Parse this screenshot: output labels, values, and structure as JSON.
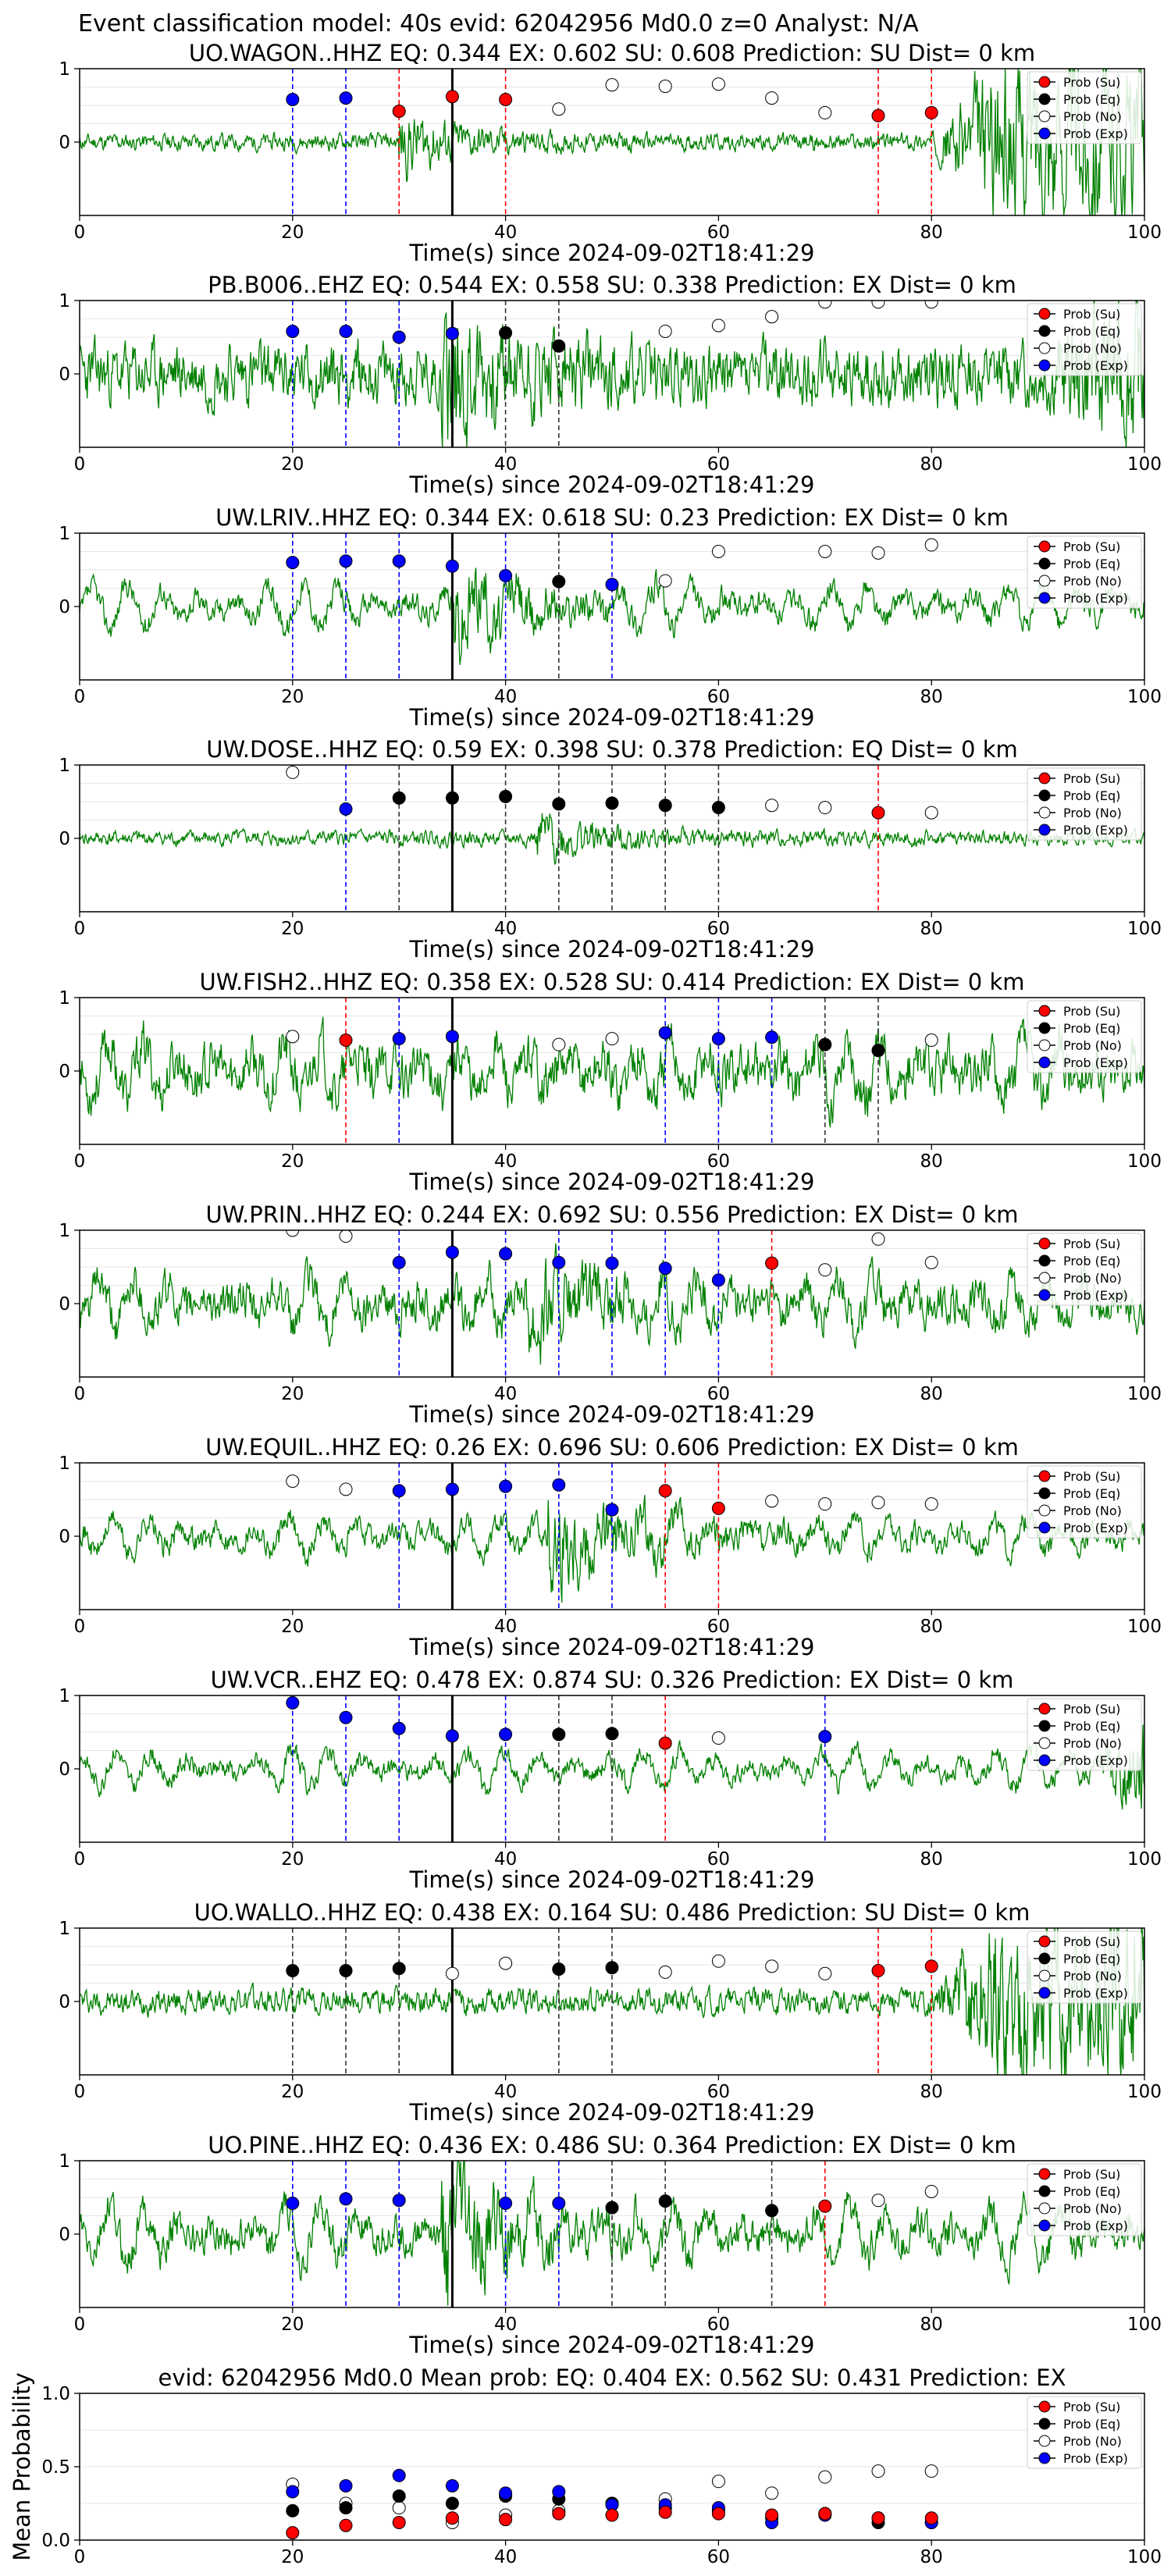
{
  "figure_title": "Event classification model: 40s evid: 62042956 Md0.0 z=0 Analyst: N/A",
  "xlabel": "Time(s) since 2024-09-02T18:41:29",
  "xticks": [
    "0",
    "20",
    "40",
    "60",
    "80",
    "100"
  ],
  "yticks": [
    "1",
    "0"
  ],
  "legend": [
    "Prob (Su)",
    "Prob (Eq)",
    "Prob (No)",
    "Prob (Exp)"
  ],
  "colors": {
    "su": "#ff0000",
    "eq": "#000000",
    "no": "#ffffff",
    "exp": "#0000ff",
    "trace": "#008000",
    "origin": "#000000"
  },
  "chart_data": [
    {
      "type": "line",
      "title": "UO.WAGON..HHZ   EQ: 0.344  EX: 0.602  SU: 0.608   Prediction: SU    Dist= 0 km",
      "xlim": [
        0,
        100
      ],
      "ylim": [
        -1,
        1
      ],
      "origin_time": 35,
      "points": [
        [
          20,
          0.58,
          "exp"
        ],
        [
          25,
          0.6,
          "exp"
        ],
        [
          30,
          0.42,
          "su"
        ],
        [
          35,
          0.62,
          "su"
        ],
        [
          40,
          0.58,
          "su"
        ],
        [
          45,
          0.45,
          "no"
        ],
        [
          50,
          0.78,
          "no"
        ],
        [
          55,
          0.76,
          "no"
        ],
        [
          60,
          0.79,
          "no"
        ],
        [
          65,
          0.6,
          "no"
        ],
        [
          70,
          0.4,
          "no"
        ],
        [
          75,
          0.36,
          "su"
        ],
        [
          80,
          0.4,
          "su"
        ]
      ],
      "trace": {
        "seed": 11,
        "noise": 0.08,
        "event_start": 30,
        "event_amp": 0.28,
        "late_start": 80,
        "late_amp": 0.7
      }
    },
    {
      "type": "line",
      "title": "PB.B006..EHZ   EQ: 0.544  EX: 0.558  SU: 0.338   Prediction: EX    Dist= 0 km",
      "xlim": [
        0,
        100
      ],
      "ylim": [
        -1,
        1
      ],
      "origin_time": 35,
      "points": [
        [
          20,
          0.58,
          "exp"
        ],
        [
          25,
          0.58,
          "exp"
        ],
        [
          30,
          0.5,
          "exp"
        ],
        [
          35,
          0.55,
          "exp"
        ],
        [
          40,
          0.56,
          "eq"
        ],
        [
          45,
          0.38,
          "eq"
        ],
        [
          55,
          0.58,
          "no"
        ],
        [
          60,
          0.66,
          "no"
        ],
        [
          65,
          0.78,
          "no"
        ],
        [
          70,
          0.98,
          "no"
        ],
        [
          75,
          0.98,
          "no"
        ],
        [
          80,
          0.98,
          "no"
        ]
      ],
      "trace": {
        "seed": 23,
        "noise": 0.3,
        "event_start": 34,
        "event_amp": 0.55,
        "late_start": 90,
        "late_amp": 0.4
      }
    },
    {
      "type": "line",
      "title": "UW.LRIV..HHZ   EQ: 0.344  EX: 0.618  SU: 0.23   Prediction: EX    Dist= 0 km",
      "xlim": [
        0,
        100
      ],
      "ylim": [
        -1,
        1
      ],
      "origin_time": 35,
      "points": [
        [
          20,
          0.6,
          "exp"
        ],
        [
          25,
          0.62,
          "exp"
        ],
        [
          30,
          0.62,
          "exp"
        ],
        [
          35,
          0.55,
          "exp"
        ],
        [
          40,
          0.42,
          "exp"
        ],
        [
          45,
          0.34,
          "eq"
        ],
        [
          50,
          0.3,
          "exp"
        ],
        [
          55,
          0.35,
          "no"
        ],
        [
          60,
          0.75,
          "no"
        ],
        [
          70,
          0.75,
          "no"
        ],
        [
          75,
          0.73,
          "no"
        ],
        [
          80,
          0.84,
          "no"
        ]
      ],
      "trace": {
        "seed": 37,
        "noise": 0.12,
        "wave_amp": 0.3,
        "event_start": 35,
        "event_amp": 0.4,
        "late_start": 100,
        "late_amp": 0
      }
    },
    {
      "type": "line",
      "title": "UW.DOSE..HHZ   EQ: 0.59  EX: 0.398  SU: 0.378   Prediction: EQ    Dist= 0 km",
      "xlim": [
        0,
        100
      ],
      "ylim": [
        -1,
        1
      ],
      "origin_time": 35,
      "points": [
        [
          20,
          0.9,
          "no"
        ],
        [
          25,
          0.4,
          "exp"
        ],
        [
          30,
          0.55,
          "eq"
        ],
        [
          35,
          0.55,
          "eq"
        ],
        [
          40,
          0.57,
          "eq"
        ],
        [
          45,
          0.47,
          "eq"
        ],
        [
          50,
          0.48,
          "eq"
        ],
        [
          55,
          0.45,
          "eq"
        ],
        [
          60,
          0.42,
          "eq"
        ],
        [
          65,
          0.45,
          "no"
        ],
        [
          70,
          0.42,
          "no"
        ],
        [
          75,
          0.35,
          "su"
        ],
        [
          80,
          0.35,
          "no"
        ]
      ],
      "trace": {
        "seed": 41,
        "noise": 0.07,
        "event_start": 43,
        "event_amp": 0.22,
        "late_start": 100,
        "late_amp": 0
      }
    },
    {
      "type": "line",
      "title": "UW.FISH2..HHZ   EQ: 0.358  EX: 0.528  SU: 0.414   Prediction: EX    Dist= 0 km",
      "xlim": [
        0,
        100
      ],
      "ylim": [
        -1,
        1
      ],
      "origin_time": 35,
      "points": [
        [
          20,
          0.47,
          "no"
        ],
        [
          25,
          0.42,
          "su"
        ],
        [
          30,
          0.44,
          "exp"
        ],
        [
          35,
          0.47,
          "exp"
        ],
        [
          45,
          0.36,
          "no"
        ],
        [
          50,
          0.44,
          "no"
        ],
        [
          55,
          0.52,
          "exp"
        ],
        [
          60,
          0.44,
          "exp"
        ],
        [
          65,
          0.46,
          "exp"
        ],
        [
          70,
          0.36,
          "eq"
        ],
        [
          75,
          0.28,
          "eq"
        ],
        [
          80,
          0.42,
          "no"
        ]
      ],
      "trace": {
        "seed": 53,
        "noise": 0.25,
        "wave_amp": 0.35,
        "event_start": 100,
        "event_amp": 0,
        "late_start": 100,
        "late_amp": 0
      }
    },
    {
      "type": "line",
      "title": "UW.PRIN..HHZ   EQ: 0.244  EX: 0.692  SU: 0.556   Prediction: EX    Dist= 0 km",
      "xlim": [
        0,
        100
      ],
      "ylim": [
        -1,
        1
      ],
      "origin_time": 35,
      "points": [
        [
          20,
          1.0,
          "no"
        ],
        [
          25,
          0.92,
          "no"
        ],
        [
          30,
          0.56,
          "exp"
        ],
        [
          35,
          0.7,
          "exp"
        ],
        [
          40,
          0.68,
          "exp"
        ],
        [
          45,
          0.56,
          "exp"
        ],
        [
          50,
          0.55,
          "exp"
        ],
        [
          55,
          0.48,
          "exp"
        ],
        [
          60,
          0.32,
          "exp"
        ],
        [
          65,
          0.55,
          "su"
        ],
        [
          70,
          0.46,
          "no"
        ],
        [
          75,
          0.88,
          "no"
        ],
        [
          80,
          0.56,
          "no"
        ]
      ],
      "trace": {
        "seed": 61,
        "noise": 0.2,
        "wave_amp": 0.32,
        "event_start": 42,
        "event_amp": 0.35,
        "late_start": 100,
        "late_amp": 0
      }
    },
    {
      "type": "line",
      "title": "UW.EQUIL..HHZ   EQ: 0.26  EX: 0.696  SU: 0.606   Prediction: EX    Dist= 0 km",
      "xlim": [
        0,
        100
      ],
      "ylim": [
        -1,
        1
      ],
      "origin_time": 35,
      "points": [
        [
          20,
          0.75,
          "no"
        ],
        [
          25,
          0.64,
          "no"
        ],
        [
          30,
          0.62,
          "exp"
        ],
        [
          35,
          0.64,
          "exp"
        ],
        [
          40,
          0.68,
          "exp"
        ],
        [
          45,
          0.7,
          "exp"
        ],
        [
          50,
          0.36,
          "exp"
        ],
        [
          55,
          0.62,
          "su"
        ],
        [
          60,
          0.38,
          "su"
        ],
        [
          65,
          0.48,
          "no"
        ],
        [
          70,
          0.44,
          "no"
        ],
        [
          75,
          0.46,
          "no"
        ],
        [
          80,
          0.44,
          "no"
        ]
      ],
      "trace": {
        "seed": 71,
        "noise": 0.12,
        "wave_amp": 0.25,
        "event_start": 44,
        "event_amp": 0.5,
        "late_start": 100,
        "late_amp": 0
      }
    },
    {
      "type": "line",
      "title": "UW.VCR..EHZ   EQ: 0.478  EX: 0.874  SU: 0.326   Prediction: EX    Dist= 0 km",
      "xlim": [
        0,
        100
      ],
      "ylim": [
        -1,
        1
      ],
      "origin_time": 35,
      "points": [
        [
          20,
          0.9,
          "exp"
        ],
        [
          25,
          0.7,
          "exp"
        ],
        [
          30,
          0.55,
          "exp"
        ],
        [
          35,
          0.45,
          "exp"
        ],
        [
          40,
          0.47,
          "exp"
        ],
        [
          45,
          0.47,
          "eq"
        ],
        [
          50,
          0.48,
          "eq"
        ],
        [
          55,
          0.35,
          "su"
        ],
        [
          60,
          0.42,
          "no"
        ],
        [
          70,
          0.44,
          "exp"
        ]
      ],
      "trace": {
        "seed": 83,
        "noise": 0.1,
        "wave_amp": 0.25,
        "event_start": 100,
        "event_amp": 0,
        "late_start": 95,
        "late_amp": 0.5
      }
    },
    {
      "type": "line",
      "title": "UO.WALLO..HHZ   EQ: 0.438  EX: 0.164  SU: 0.486   Prediction: SU    Dist= 0 km",
      "xlim": [
        0,
        100
      ],
      "ylim": [
        -1,
        1
      ],
      "origin_time": 35,
      "points": [
        [
          20,
          0.42,
          "eq"
        ],
        [
          25,
          0.42,
          "eq"
        ],
        [
          30,
          0.45,
          "eq"
        ],
        [
          35,
          0.38,
          "no"
        ],
        [
          40,
          0.52,
          "no"
        ],
        [
          45,
          0.44,
          "eq"
        ],
        [
          50,
          0.46,
          "eq"
        ],
        [
          55,
          0.4,
          "no"
        ],
        [
          60,
          0.55,
          "no"
        ],
        [
          65,
          0.48,
          "no"
        ],
        [
          70,
          0.38,
          "no"
        ],
        [
          75,
          0.42,
          "su"
        ],
        [
          80,
          0.48,
          "su"
        ]
      ],
      "trace": {
        "seed": 97,
        "noise": 0.12,
        "event_start": 100,
        "event_amp": 0,
        "late_start": 80,
        "late_amp": 0.75
      }
    },
    {
      "type": "line",
      "title": "UO.PINE..HHZ   EQ: 0.436  EX: 0.486  SU: 0.364   Prediction: EX    Dist= 0 km",
      "xlim": [
        0,
        100
      ],
      "ylim": [
        -1,
        1
      ],
      "origin_time": 35,
      "points": [
        [
          20,
          0.42,
          "exp"
        ],
        [
          25,
          0.48,
          "exp"
        ],
        [
          30,
          0.46,
          "exp"
        ],
        [
          40,
          0.42,
          "exp"
        ],
        [
          45,
          0.42,
          "exp"
        ],
        [
          50,
          0.36,
          "eq"
        ],
        [
          55,
          0.45,
          "eq"
        ],
        [
          65,
          0.32,
          "eq"
        ],
        [
          70,
          0.38,
          "su"
        ],
        [
          75,
          0.46,
          "no"
        ],
        [
          80,
          0.58,
          "no"
        ]
      ],
      "trace": {
        "seed": 103,
        "noise": 0.18,
        "wave_amp": 0.35,
        "event_start": 34,
        "event_amp": 0.6,
        "late_start": 100,
        "late_amp": 0
      }
    },
    {
      "type": "scatter",
      "title": "evid: 62042956   Md0.0   Mean prob:   EQ: 0.404  EX: 0.562  SU: 0.431   Prediction: EX",
      "ylabel": "Mean Probability",
      "xlim": [
        0,
        100
      ],
      "ylim": [
        0,
        1
      ],
      "yticks": [
        "1.0",
        "0.5",
        "0.0"
      ],
      "x": [
        20,
        25,
        30,
        35,
        40,
        45,
        50,
        55,
        60,
        65,
        70,
        75,
        80
      ],
      "series": [
        {
          "name": "Prob (Su)",
          "values": [
            0.05,
            0.1,
            0.12,
            0.15,
            0.14,
            0.18,
            0.17,
            0.19,
            0.18,
            0.17,
            0.18,
            0.15,
            0.15
          ]
        },
        {
          "name": "Prob (Eq)",
          "values": [
            0.2,
            0.22,
            0.3,
            0.25,
            0.3,
            0.28,
            0.25,
            0.22,
            0.2,
            0.15,
            0.18,
            0.12,
            0.12
          ]
        },
        {
          "name": "Prob (No)",
          "values": [
            0.38,
            0.25,
            0.22,
            0.12,
            0.17,
            0.2,
            0.25,
            0.28,
            0.4,
            0.32,
            0.43,
            0.47,
            0.47
          ]
        },
        {
          "name": "Prob (Exp)",
          "values": [
            0.33,
            0.37,
            0.44,
            0.37,
            0.32,
            0.33,
            0.24,
            0.24,
            0.22,
            0.12,
            0.17,
            0.15,
            0.12
          ]
        }
      ]
    }
  ]
}
